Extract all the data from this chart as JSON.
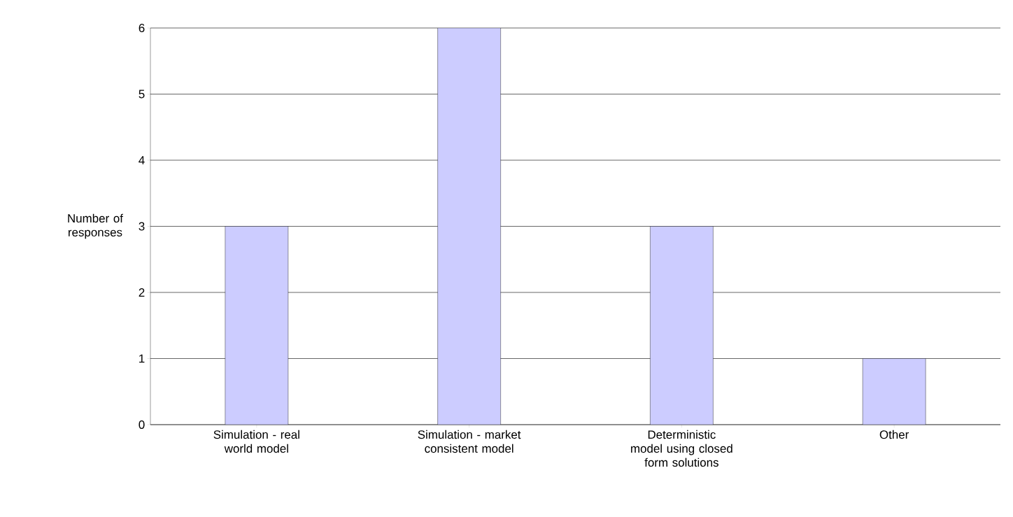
{
  "chart_data": {
    "type": "bar",
    "ylabel": "Number of responses",
    "categories": [
      "Simulation - real world model",
      "Simulation - market consistent model",
      "Deterministic model using closed form solutions",
      "Other"
    ],
    "values": [
      3,
      6,
      3,
      1
    ],
    "color": "#ccccff",
    "ylim": [
      0,
      6
    ],
    "yticks": [
      0,
      1,
      2,
      3,
      4,
      5,
      6
    ],
    "grid": "y"
  }
}
